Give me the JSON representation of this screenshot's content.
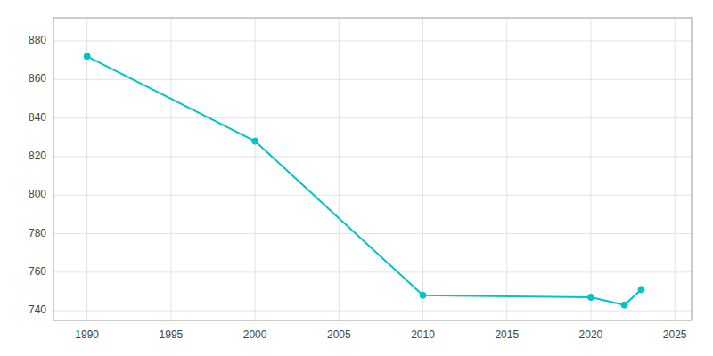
{
  "chart_data": {
    "type": "line",
    "x": [
      1990,
      2000,
      2010,
      2020,
      2022,
      2023
    ],
    "values": [
      872,
      828,
      748,
      747,
      743,
      751
    ],
    "color": "#00C4C4",
    "marker": "circle",
    "xlim": [
      1988,
      2026
    ],
    "ylim": [
      735,
      892
    ],
    "xticks": [
      1990,
      1995,
      2000,
      2005,
      2010,
      2015,
      2020,
      2025
    ],
    "yticks": [
      740,
      760,
      780,
      800,
      820,
      840,
      860,
      880
    ],
    "grid": true
  }
}
